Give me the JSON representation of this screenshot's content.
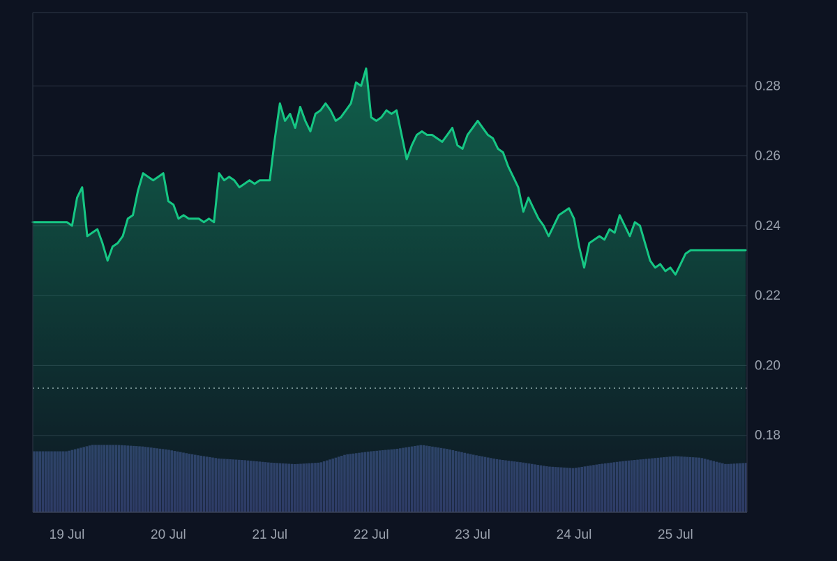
{
  "colors": {
    "background": "#0d1321",
    "price_line": "#16c784",
    "area_top": "#16c784",
    "volume_fill": "#2f3966",
    "grid": "#2a3242",
    "axis_text": "#9aa1ad",
    "reference_line": "#c8ccd4"
  },
  "chart_data": {
    "type": "line",
    "title": "",
    "xlabel": "",
    "ylabel": "",
    "x_tick_labels": [
      "19 Jul",
      "20 Jul",
      "21 Jul",
      "22 Jul",
      "23 Jul",
      "24 Jul",
      "25 Jul"
    ],
    "y_tick_labels": [
      "0.18",
      "0.20",
      "0.22",
      "0.24",
      "0.26",
      "0.28"
    ],
    "ylim": [
      0.158,
      0.301
    ],
    "reference_value": 0.1935,
    "grid": true,
    "legend": "none",
    "series": [
      {
        "type": "line",
        "x_days": [
          0,
          0.05,
          0.1,
          0.15,
          0.2,
          0.25,
          0.3,
          0.35,
          0.4,
          0.45,
          0.5,
          0.55,
          0.6,
          0.65,
          0.7,
          0.75,
          0.8,
          0.85,
          0.9,
          0.95,
          1.0,
          1.05,
          1.1,
          1.15,
          1.2,
          1.25,
          1.3,
          1.35,
          1.4,
          1.45,
          1.5,
          1.55,
          1.6,
          1.65,
          1.7,
          1.75,
          1.8,
          1.85,
          1.9,
          1.95,
          2.0,
          2.05,
          2.1,
          2.15,
          2.2,
          2.25,
          2.3,
          2.35,
          2.4,
          2.45,
          2.5,
          2.55,
          2.6,
          2.65,
          2.7,
          2.75,
          2.8,
          2.85,
          2.9,
          2.95,
          3.0,
          3.05,
          3.1,
          3.15,
          3.2,
          3.25,
          3.3,
          3.35,
          3.4,
          3.45,
          3.5,
          3.55,
          3.6,
          3.65,
          3.7,
          3.75,
          3.8,
          3.85,
          3.9,
          3.95,
          4.0,
          4.05,
          4.1,
          4.15,
          4.2,
          4.25,
          4.3,
          4.35,
          4.4,
          4.45,
          4.5,
          4.55,
          4.6,
          4.65,
          4.7,
          4.75,
          4.8,
          4.85,
          4.9,
          4.95,
          5.0,
          5.05,
          5.1,
          5.15,
          5.2,
          5.25,
          5.3,
          5.35,
          5.4,
          5.45,
          5.5,
          5.55,
          5.6,
          5.65,
          5.7,
          5.75,
          5.8,
          5.85,
          5.9,
          5.95,
          6.0,
          6.05,
          6.1,
          6.15,
          6.2,
          6.25,
          6.3,
          6.35,
          6.4,
          6.45,
          6.5,
          6.55,
          6.6,
          6.65,
          6.7,
          6.75,
          6.8,
          6.85,
          6.9,
          6.95,
          7.0
        ],
        "values": [
          0.241,
          0.24,
          0.248,
          0.251,
          0.237,
          0.238,
          0.239,
          0.235,
          0.23,
          0.234,
          0.235,
          0.237,
          0.242,
          0.243,
          0.25,
          0.255,
          0.254,
          0.253,
          0.254,
          0.255,
          0.247,
          0.246,
          0.242,
          0.243,
          0.242,
          0.242,
          0.242,
          0.241,
          0.242,
          0.241,
          0.255,
          0.253,
          0.254,
          0.253,
          0.251,
          0.252,
          0.253,
          0.252,
          0.253,
          0.253,
          0.253,
          0.265,
          0.275,
          0.27,
          0.272,
          0.268,
          0.274,
          0.27,
          0.267,
          0.272,
          0.273,
          0.275,
          0.273,
          0.27,
          0.271,
          0.273,
          0.275,
          0.281,
          0.28,
          0.285,
          0.271,
          0.27,
          0.271,
          0.273,
          0.272,
          0.273,
          0.266,
          0.259,
          0.263,
          0.266,
          0.267,
          0.266,
          0.266,
          0.265,
          0.264,
          0.266,
          0.268,
          0.263,
          0.262,
          0.266,
          0.268,
          0.27,
          0.268,
          0.266,
          0.265,
          0.262,
          0.261,
          0.257,
          0.254,
          0.251,
          0.244,
          0.248,
          0.245,
          0.242,
          0.24,
          0.237,
          0.24,
          0.243,
          0.244,
          0.245,
          0.242,
          0.234,
          0.228,
          0.235,
          0.236,
          0.237,
          0.236,
          0.239,
          0.238,
          0.243,
          0.24,
          0.237,
          0.241,
          0.24,
          0.235,
          0.23,
          0.228,
          0.229,
          0.227,
          0.228,
          0.226,
          0.229,
          0.232,
          0.233,
          0.233,
          0.233,
          0.233,
          0.233,
          0.233,
          0.233,
          0.233,
          0.233,
          0.233,
          0.233,
          0.233,
          0.233,
          0.233,
          0.233,
          0.233,
          0.233,
          0.233
        ]
      },
      {
        "type": "bar",
        "name": "",
        "x_days": [
          0,
          0.25,
          0.5,
          0.75,
          1.0,
          1.25,
          1.5,
          1.75,
          2.0,
          2.25,
          2.5,
          2.75,
          3.0,
          3.25,
          3.5,
          3.75,
          4.0,
          4.25,
          4.5,
          4.75,
          5.0,
          5.25,
          5.5,
          5.75,
          6.0,
          6.25,
          6.5,
          6.75,
          7.0
        ],
        "relative_heights": [
          0.76,
          0.84,
          0.84,
          0.82,
          0.78,
          0.72,
          0.67,
          0.65,
          0.62,
          0.6,
          0.62,
          0.72,
          0.76,
          0.79,
          0.84,
          0.79,
          0.72,
          0.66,
          0.62,
          0.57,
          0.55,
          0.6,
          0.64,
          0.67,
          0.7,
          0.68,
          0.6,
          0.62,
          0.59
        ]
      }
    ]
  }
}
